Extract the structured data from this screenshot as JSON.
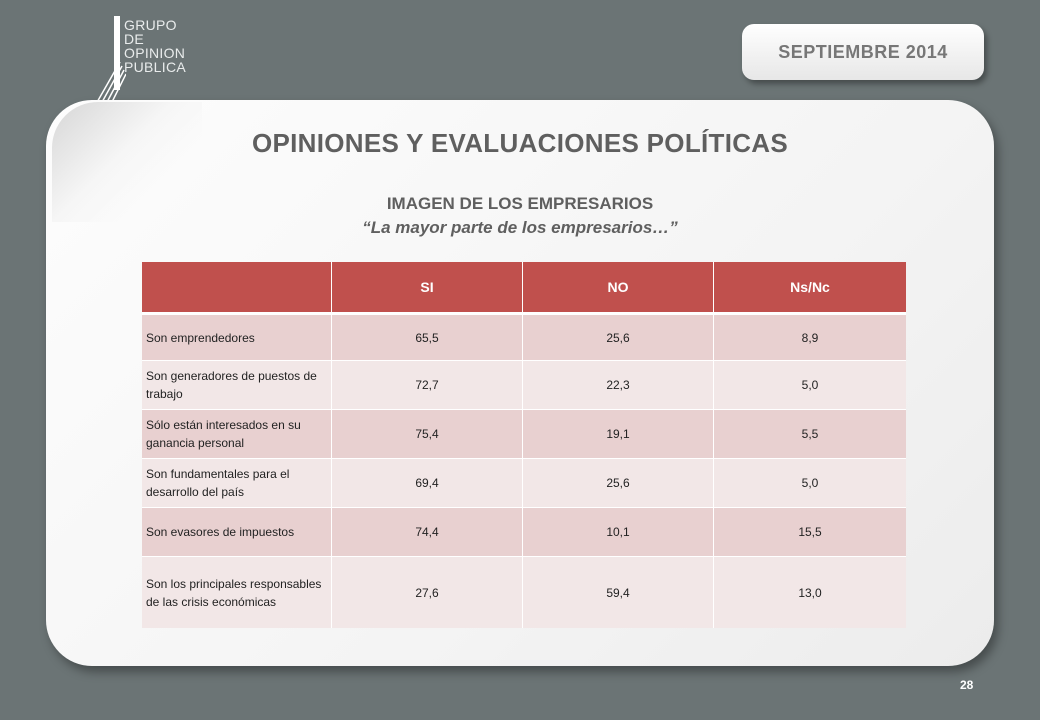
{
  "logo": {
    "lines": [
      "GRUPO",
      "DE",
      "OPINION",
      "PUBLICA"
    ]
  },
  "date": "SEPTIEMBRE  2014",
  "title": "OPINIONES Y EVALUACIONES POLÍTICAS",
  "subtitle": {
    "line1": "IMAGEN DE LOS EMPRESARIOS",
    "line2": "“La mayor parte de los empresarios…”"
  },
  "table": {
    "headers": [
      "",
      "SI",
      "NO",
      "Ns/Nc"
    ],
    "rows": [
      {
        "label": "Son emprendedores",
        "si": "65,5",
        "no": "25,6",
        "nsnc": "8,9"
      },
      {
        "label": "Son generadores de puestos de trabajo",
        "si": "72,7",
        "no": "22,3",
        "nsnc": "5,0"
      },
      {
        "label": "Sólo están interesados en su ganancia personal",
        "si": "75,4",
        "no": "19,1",
        "nsnc": "5,5"
      },
      {
        "label": "Son fundamentales para el desarrollo del país",
        "si": "69,4",
        "no": "25,6",
        "nsnc": "5,0"
      },
      {
        "label": "Son evasores de impuestos",
        "si": "74,4",
        "no": "10,1",
        "nsnc": "15,5"
      },
      {
        "label": "Son los principales responsables de las crisis económicas",
        "si": "27,6",
        "no": "59,4",
        "nsnc": "13,0"
      }
    ]
  },
  "page_number": "28",
  "colors": {
    "header": "#c0504d",
    "row_odd": "#e8d0d0",
    "row_even": "#f2e7e7",
    "background": "#6b7475"
  }
}
